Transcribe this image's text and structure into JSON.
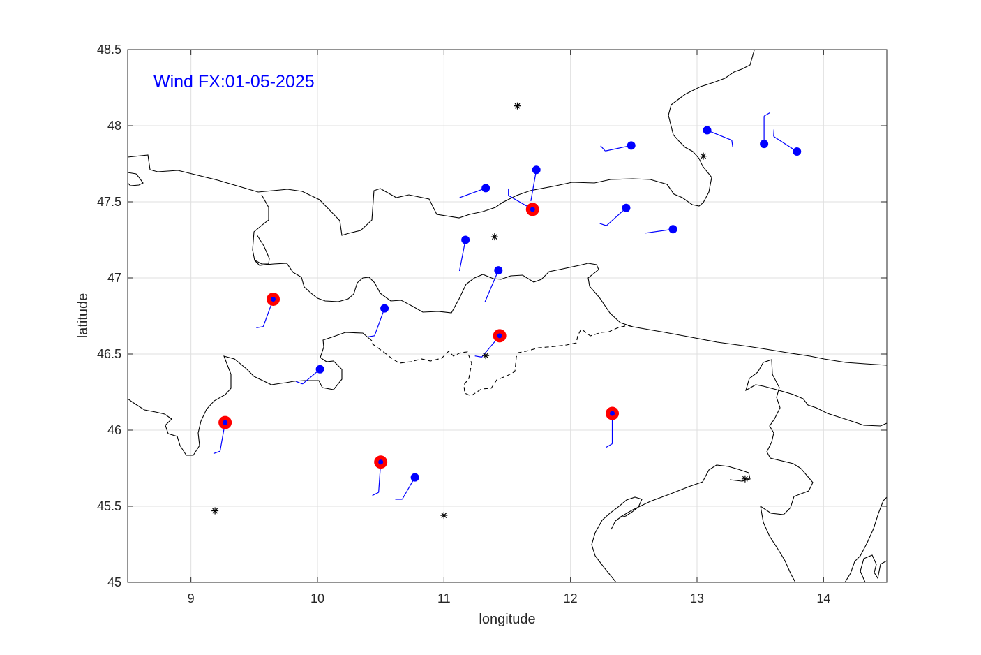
{
  "chart_data": {
    "type": "scatter",
    "title": "Wind FX:01-05-2025",
    "xlabel": "longitude",
    "ylabel": "latitude",
    "xlim": [
      8.5,
      14.5
    ],
    "ylim": [
      45,
      48.5
    ],
    "xticks": [
      9,
      10,
      11,
      12,
      13,
      14
    ],
    "yticks": [
      45,
      45.5,
      46,
      46.5,
      47,
      47.5,
      48,
      48.5
    ],
    "x_tick_labels": [
      "9",
      "10",
      "11",
      "12",
      "13",
      "14"
    ],
    "y_tick_labels": [
      "45",
      "45.5",
      "46",
      "46.5",
      "47",
      "47.5",
      "48",
      "48.5"
    ],
    "grid": true,
    "colors": {
      "station": "#0000ff",
      "highlight": "#ff0000",
      "star": "#000000",
      "coast": "#000000",
      "grid": "#dfdfdf"
    },
    "series": [
      {
        "marker": "filled-circle",
        "points": [
          {
            "x": 11.33,
            "y": 47.59,
            "dir_deg": 250,
            "len": 0.22,
            "barbs": 0
          },
          {
            "x": 11.73,
            "y": 47.71,
            "dir_deg": 190,
            "len": 0.25,
            "barbs": 0
          },
          {
            "x": 12.48,
            "y": 47.87,
            "dir_deg": 258,
            "len": 0.21,
            "barbs": 1
          },
          {
            "x": 13.08,
            "y": 47.97,
            "dir_deg": 112,
            "len": 0.21,
            "barbs": 1
          },
          {
            "x": 13.53,
            "y": 47.88,
            "dir_deg": 0,
            "len": 0.22,
            "barbs": 1
          },
          {
            "x": 13.79,
            "y": 47.83,
            "dir_deg": 303,
            "len": 0.22,
            "barbs": 1
          },
          {
            "x": 12.44,
            "y": 47.46,
            "dir_deg": 228,
            "len": 0.21,
            "barbs": 1
          },
          {
            "x": 12.81,
            "y": 47.32,
            "dir_deg": 262,
            "len": 0.22,
            "barbs": 0
          },
          {
            "x": 11.17,
            "y": 47.25,
            "dir_deg": 191,
            "len": 0.25,
            "barbs": 0
          },
          {
            "x": 11.43,
            "y": 47.05,
            "dir_deg": 203,
            "len": 0.27,
            "barbs": 0
          },
          {
            "x": 10.53,
            "y": 46.8,
            "dir_deg": 200,
            "len": 0.23,
            "barbs": 1
          },
          {
            "x": 10.02,
            "y": 46.4,
            "dir_deg": 230,
            "len": 0.18,
            "barbs": 1
          },
          {
            "x": 10.77,
            "y": 45.69,
            "dir_deg": 210,
            "len": 0.2,
            "barbs": 1
          }
        ]
      },
      {
        "marker": "red-ring-circle",
        "points": [
          {
            "x": 11.7,
            "y": 47.45,
            "dir_deg": 300,
            "len": 0.22,
            "barbs": 1
          },
          {
            "x": 9.65,
            "y": 46.86,
            "dir_deg": 200,
            "len": 0.23,
            "barbs": 1
          },
          {
            "x": 11.44,
            "y": 46.62,
            "dir_deg": 220,
            "len": 0.22,
            "barbs": 1
          },
          {
            "x": 9.27,
            "y": 46.05,
            "dir_deg": 190,
            "len": 0.23,
            "barbs": 1
          },
          {
            "x": 10.5,
            "y": 45.79,
            "dir_deg": 184,
            "len": 0.24,
            "barbs": 1
          },
          {
            "x": 12.33,
            "y": 46.11,
            "dir_deg": 180,
            "len": 0.24,
            "barbs": 1
          }
        ]
      },
      {
        "marker": "asterisk",
        "points": [
          {
            "x": 11.58,
            "y": 48.13
          },
          {
            "x": 13.05,
            "y": 47.8
          },
          {
            "x": 11.4,
            "y": 47.27
          },
          {
            "x": 11.33,
            "y": 46.49
          },
          {
            "x": 13.38,
            "y": 45.68
          },
          {
            "x": 9.19,
            "y": 45.47
          },
          {
            "x": 11.0,
            "y": 45.44
          }
        ]
      }
    ]
  }
}
